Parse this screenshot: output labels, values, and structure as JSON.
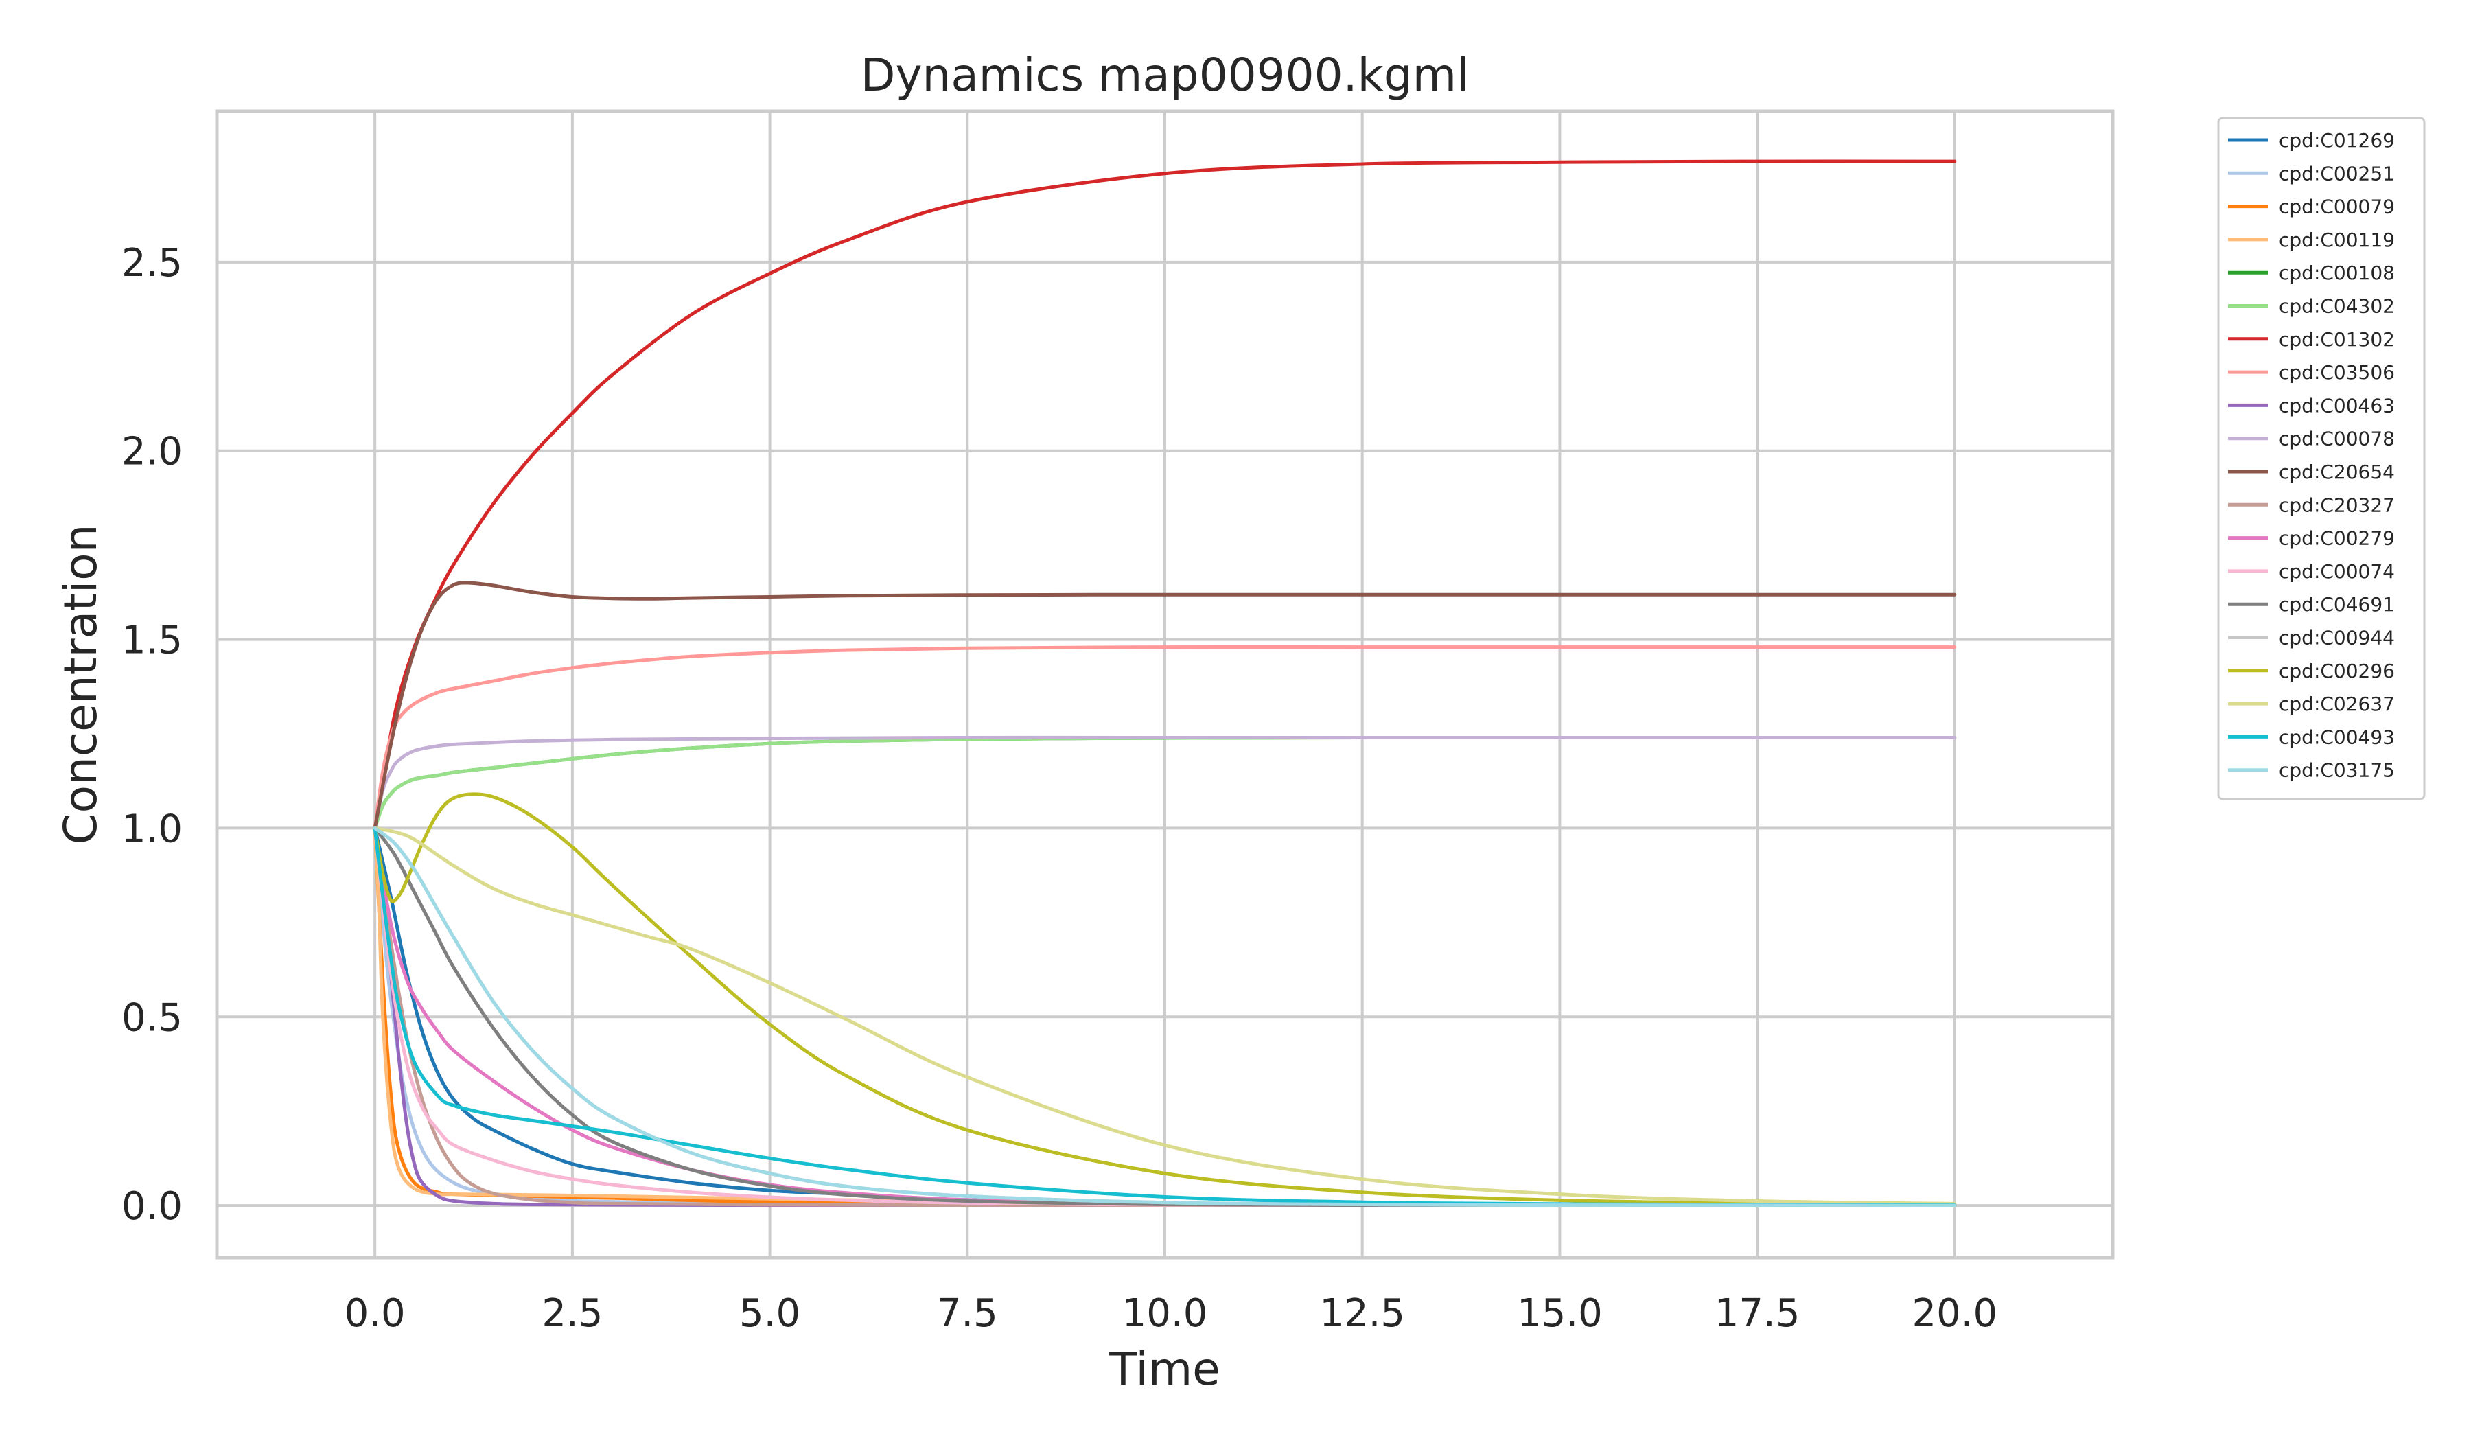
{
  "chart_data": {
    "type": "line",
    "title": "Dynamics map00900.kgml",
    "xlabel": "Time",
    "ylabel": "Concentration",
    "xlim": [
      -2.0,
      22.0
    ],
    "ylim": [
      -0.138,
      2.9
    ],
    "xticks": [
      0.0,
      2.5,
      5.0,
      7.5,
      10.0,
      12.5,
      15.0,
      17.5,
      20.0
    ],
    "xtick_labels": [
      "0.0",
      "2.5",
      "5.0",
      "7.5",
      "10.0",
      "12.5",
      "15.0",
      "17.5",
      "20.0"
    ],
    "yticks": [
      0.0,
      0.5,
      1.0,
      1.5,
      2.0,
      2.5
    ],
    "ytick_labels": [
      "0.0",
      "0.5",
      "1.0",
      "1.5",
      "2.0",
      "2.5"
    ],
    "grid": true,
    "legend_position": "outside-right",
    "series": [
      {
        "name": "cpd:C01269",
        "color": "#1f77b4",
        "x": [
          0,
          0.2,
          0.4,
          0.6,
          0.8,
          1.0,
          1.25,
          1.5,
          2.0,
          2.5,
          3.0,
          4.0,
          5.0,
          6.0,
          7.5,
          10.0,
          12.5,
          15.0,
          20.0
        ],
        "y": [
          1.0,
          0.82,
          0.62,
          0.46,
          0.35,
          0.28,
          0.23,
          0.2,
          0.15,
          0.11,
          0.09,
          0.06,
          0.04,
          0.03,
          0.015,
          0.006,
          0.002,
          0.001,
          0.0
        ]
      },
      {
        "name": "cpd:C00251",
        "color": "#aec7e8",
        "x": [
          0,
          0.2,
          0.5,
          1.0,
          2.0,
          3.0,
          5.0,
          10.0,
          20.0
        ],
        "y": [
          1.0,
          0.55,
          0.2,
          0.06,
          0.02,
          0.01,
          0.005,
          0.001,
          0.0
        ]
      },
      {
        "name": "cpd:C00079",
        "color": "#ff7f0e",
        "x": [
          0,
          0.1,
          0.2,
          0.3,
          0.5,
          0.8,
          1.0,
          2.0,
          3.0,
          5.0,
          10.0,
          20.0
        ],
        "y": [
          1.0,
          0.6,
          0.3,
          0.15,
          0.06,
          0.035,
          0.03,
          0.025,
          0.02,
          0.01,
          0.003,
          0.0
        ]
      },
      {
        "name": "cpd:C00119",
        "color": "#ffbb78",
        "x": [
          0,
          0.05,
          0.1,
          0.2,
          0.3,
          0.5,
          0.8,
          1.0,
          2.0,
          3.0,
          5.0,
          7.5,
          10.0,
          20.0
        ],
        "y": [
          1.0,
          0.8,
          0.5,
          0.22,
          0.1,
          0.045,
          0.03,
          0.03,
          0.028,
          0.025,
          0.018,
          0.01,
          0.005,
          0.0
        ]
      },
      {
        "name": "cpd:C00108",
        "color": "#2ca02c",
        "x": [
          0,
          0.1,
          0.2,
          0.3,
          0.5,
          0.8,
          1.0,
          1.5,
          2.0,
          3.0,
          4.0,
          5.0,
          6.0,
          7.5,
          10.0,
          12.5,
          15.0,
          20.0
        ],
        "y": [
          1.0,
          1.06,
          1.09,
          1.11,
          1.13,
          1.14,
          1.148,
          1.16,
          1.172,
          1.195,
          1.212,
          1.224,
          1.231,
          1.236,
          1.239,
          1.24,
          1.24,
          1.24
        ]
      },
      {
        "name": "cpd:C04302",
        "color": "#98df8a",
        "x": [
          0,
          0.1,
          0.2,
          0.3,
          0.5,
          0.8,
          1.0,
          1.5,
          2.0,
          3.0,
          4.0,
          5.0,
          6.0,
          7.5,
          10.0,
          12.5,
          15.0,
          20.0
        ],
        "y": [
          1.0,
          1.06,
          1.09,
          1.11,
          1.13,
          1.14,
          1.148,
          1.16,
          1.172,
          1.195,
          1.212,
          1.224,
          1.231,
          1.236,
          1.239,
          1.24,
          1.24,
          1.24
        ]
      },
      {
        "name": "cpd:C01302",
        "color": "#d62728",
        "x": [
          0,
          0.25,
          0.5,
          0.75,
          1.0,
          1.5,
          2.0,
          2.5,
          3.0,
          4.0,
          5.0,
          6.0,
          7.5,
          10.0,
          12.5,
          15.0,
          17.5,
          20.0
        ],
        "y": [
          1.0,
          1.3,
          1.48,
          1.6,
          1.7,
          1.86,
          1.99,
          2.1,
          2.2,
          2.36,
          2.47,
          2.56,
          2.66,
          2.735,
          2.76,
          2.765,
          2.767,
          2.767
        ]
      },
      {
        "name": "cpd:C03506",
        "color": "#ff9896",
        "x": [
          0,
          0.1,
          0.2,
          0.3,
          0.5,
          0.8,
          1.0,
          1.5,
          2.0,
          2.5,
          3.0,
          4.0,
          5.0,
          6.0,
          7.5,
          10.0,
          12.5,
          15.0,
          20.0
        ],
        "y": [
          1.0,
          1.15,
          1.24,
          1.29,
          1.33,
          1.36,
          1.37,
          1.39,
          1.41,
          1.425,
          1.437,
          1.455,
          1.465,
          1.472,
          1.477,
          1.48,
          1.48,
          1.48,
          1.48
        ]
      },
      {
        "name": "cpd:C00463",
        "color": "#9467bd",
        "x": [
          0,
          0.1,
          0.2,
          0.3,
          0.4,
          0.5,
          0.6,
          0.8,
          1.0,
          1.5,
          2.0,
          3.0,
          5.0,
          10.0,
          20.0
        ],
        "y": [
          1.0,
          0.85,
          0.62,
          0.4,
          0.22,
          0.11,
          0.06,
          0.025,
          0.012,
          0.005,
          0.003,
          0.002,
          0.001,
          0.0,
          0.0
        ]
      },
      {
        "name": "cpd:C00078",
        "color": "#c5b0d5",
        "x": [
          0,
          0.1,
          0.2,
          0.3,
          0.5,
          0.8,
          1.0,
          1.5,
          2.0,
          3.0,
          5.0,
          7.5,
          10.0,
          15.0,
          20.0
        ],
        "y": [
          1.0,
          1.1,
          1.15,
          1.18,
          1.205,
          1.218,
          1.222,
          1.227,
          1.231,
          1.235,
          1.238,
          1.24,
          1.24,
          1.24,
          1.24
        ]
      },
      {
        "name": "cpd:C20654",
        "color": "#8c564b",
        "x": [
          0,
          0.2,
          0.4,
          0.6,
          0.8,
          1.0,
          1.2,
          1.5,
          2.0,
          2.5,
          3.0,
          3.5,
          4.0,
          5.0,
          6.0,
          7.5,
          10.0,
          12.5,
          15.0,
          20.0
        ],
        "y": [
          1.0,
          1.22,
          1.4,
          1.53,
          1.61,
          1.645,
          1.65,
          1.643,
          1.625,
          1.613,
          1.609,
          1.608,
          1.61,
          1.613,
          1.616,
          1.618,
          1.619,
          1.619,
          1.619,
          1.619
        ]
      },
      {
        "name": "cpd:C20327",
        "color": "#c49c94",
        "x": [
          0,
          0.2,
          0.4,
          0.6,
          0.8,
          1.0,
          1.2,
          1.5,
          2.0,
          2.5,
          3.0,
          5.0,
          10.0,
          20.0
        ],
        "y": [
          1.0,
          0.7,
          0.45,
          0.28,
          0.17,
          0.1,
          0.06,
          0.032,
          0.015,
          0.008,
          0.005,
          0.002,
          0.0,
          0.0
        ]
      },
      {
        "name": "cpd:C00279",
        "color": "#e377c2",
        "x": [
          0,
          0.2,
          0.4,
          0.6,
          0.8,
          1.0,
          1.5,
          2.0,
          2.5,
          3.0,
          4.0,
          5.0,
          6.0,
          7.5,
          10.0,
          12.5,
          15.0,
          20.0
        ],
        "y": [
          1.0,
          0.75,
          0.6,
          0.52,
          0.46,
          0.41,
          0.33,
          0.26,
          0.2,
          0.155,
          0.095,
          0.055,
          0.033,
          0.015,
          0.004,
          0.001,
          0.0,
          0.0
        ]
      },
      {
        "name": "cpd:C00074",
        "color": "#f7b6d2",
        "x": [
          0,
          0.2,
          0.4,
          0.6,
          0.8,
          1.0,
          1.5,
          2.0,
          2.5,
          3.0,
          4.0,
          5.0,
          6.0,
          7.5,
          10.0,
          12.5,
          15.0,
          20.0
        ],
        "y": [
          1.0,
          0.62,
          0.38,
          0.26,
          0.2,
          0.16,
          0.12,
          0.09,
          0.07,
          0.055,
          0.035,
          0.022,
          0.014,
          0.007,
          0.002,
          0.001,
          0.0,
          0.0
        ]
      },
      {
        "name": "cpd:C04691",
        "color": "#7f7f7f",
        "x": [
          0,
          0.25,
          0.5,
          0.75,
          1.0,
          1.5,
          2.0,
          2.5,
          3.0,
          4.0,
          5.0,
          6.0,
          7.5,
          10.0,
          12.5,
          15.0,
          20.0
        ],
        "y": [
          1.0,
          0.93,
          0.83,
          0.73,
          0.63,
          0.47,
          0.34,
          0.24,
          0.17,
          0.095,
          0.052,
          0.028,
          0.012,
          0.003,
          0.001,
          0.0,
          0.0
        ]
      },
      {
        "name": "cpd:C00944",
        "color": "#c7c7c7",
        "x": [
          0,
          0.25,
          0.5,
          0.75,
          1.0,
          1.5,
          2.0,
          2.5,
          3.0,
          4.0,
          5.0,
          6.0,
          7.5,
          10.0,
          12.5,
          15.0,
          20.0
        ],
        "y": [
          1.0,
          0.96,
          0.89,
          0.8,
          0.71,
          0.54,
          0.41,
          0.31,
          0.235,
          0.14,
          0.085,
          0.05,
          0.025,
          0.008,
          0.003,
          0.001,
          0.0
        ]
      },
      {
        "name": "cpd:C00296",
        "color": "#bcbd22",
        "x": [
          0,
          0.1,
          0.2,
          0.3,
          0.4,
          0.6,
          0.8,
          1.0,
          1.3,
          1.6,
          2.0,
          2.5,
          3.0,
          4.0,
          5.0,
          6.0,
          7.5,
          10.0,
          12.5,
          15.0,
          17.5,
          20.0
        ],
        "y": [
          1.0,
          0.88,
          0.81,
          0.82,
          0.86,
          0.96,
          1.04,
          1.08,
          1.09,
          1.075,
          1.03,
          0.95,
          0.85,
          0.66,
          0.48,
          0.34,
          0.2,
          0.085,
          0.035,
          0.014,
          0.006,
          0.002
        ]
      },
      {
        "name": "cpd:C02637",
        "color": "#dbdb8d",
        "x": [
          0,
          0.25,
          0.5,
          1.0,
          1.5,
          2.0,
          2.5,
          3.0,
          3.5,
          4.0,
          5.0,
          6.0,
          7.5,
          10.0,
          12.5,
          15.0,
          17.5,
          20.0
        ],
        "y": [
          1.0,
          0.99,
          0.97,
          0.9,
          0.84,
          0.8,
          0.77,
          0.74,
          0.71,
          0.68,
          0.59,
          0.49,
          0.34,
          0.16,
          0.07,
          0.03,
          0.012,
          0.005
        ]
      },
      {
        "name": "cpd:C00493",
        "color": "#17becf",
        "x": [
          0,
          0.1,
          0.2,
          0.3,
          0.5,
          0.8,
          1.0,
          1.5,
          2.0,
          3.0,
          4.0,
          5.0,
          6.0,
          7.5,
          10.0,
          12.5,
          15.0,
          20.0
        ],
        "y": [
          1.0,
          0.82,
          0.66,
          0.53,
          0.38,
          0.29,
          0.265,
          0.24,
          0.225,
          0.195,
          0.16,
          0.125,
          0.095,
          0.06,
          0.023,
          0.009,
          0.004,
          0.001
        ]
      },
      {
        "name": "cpd:C03175",
        "color": "#9edae5",
        "x": [
          0,
          0.25,
          0.5,
          0.75,
          1.0,
          1.5,
          2.0,
          2.5,
          3.0,
          4.0,
          5.0,
          6.0,
          7.5,
          10.0,
          12.5,
          15.0,
          20.0
        ],
        "y": [
          1.0,
          0.96,
          0.89,
          0.8,
          0.71,
          0.54,
          0.41,
          0.31,
          0.235,
          0.14,
          0.085,
          0.05,
          0.025,
          0.008,
          0.003,
          0.001,
          0.0
        ]
      }
    ]
  }
}
